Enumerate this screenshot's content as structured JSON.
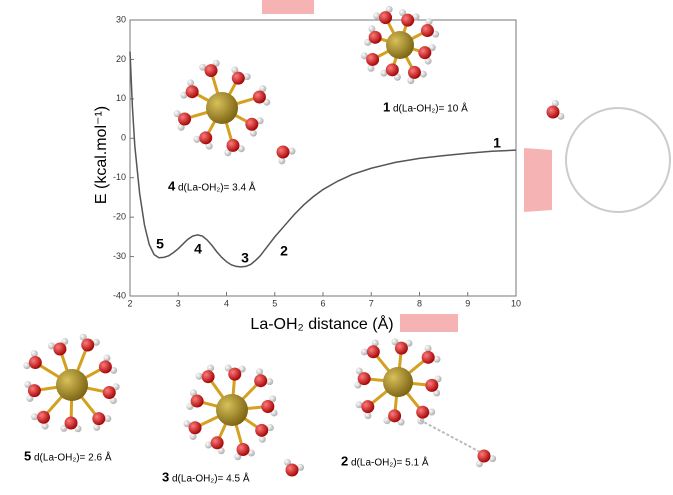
{
  "chart_data": {
    "type": "line",
    "y_label": "E (kcal.mol⁻¹)",
    "x_label": "La-OH₂ distance (Å)",
    "x": [
      2,
      2.05,
      2.1,
      2.2,
      2.3,
      2.4,
      2.5,
      2.6,
      2.7,
      2.8,
      2.9,
      3.0,
      3.1,
      3.2,
      3.3,
      3.4,
      3.5,
      3.6,
      3.7,
      3.8,
      3.9,
      4.0,
      4.1,
      4.2,
      4.3,
      4.4,
      4.5,
      4.6,
      4.7,
      4.8,
      4.9,
      5.0,
      5.2,
      5.4,
      5.6,
      5.8,
      6.0,
      6.3,
      6.6,
      7.0,
      7.5,
      8.0,
      8.5,
      9.0,
      9.5,
      10
    ],
    "values": [
      22,
      8,
      -2,
      -14,
      -22,
      -27,
      -29.5,
      -30.3,
      -30.2,
      -29.8,
      -29,
      -28,
      -26.8,
      -25.6,
      -24.8,
      -24.5,
      -24.8,
      -25.8,
      -27.2,
      -28.8,
      -30.2,
      -31.3,
      -32.1,
      -32.5,
      -32.6,
      -32.5,
      -32,
      -31,
      -29.8,
      -28.2,
      -26.6,
      -25,
      -22.2,
      -19.4,
      -16.9,
      -14.8,
      -13,
      -10.9,
      -9.2,
      -7.6,
      -6.1,
      -5.1,
      -4.4,
      -3.8,
      -3.3,
      -3
    ],
    "color": "#555555",
    "xlim": [
      2,
      10
    ],
    "xticks": [
      2,
      3,
      4,
      5,
      6,
      7,
      8,
      9,
      10
    ],
    "ylim": [
      -40,
      30
    ],
    "yticks": [
      30,
      20,
      10,
      0,
      -10,
      -20,
      -30,
      -40
    ],
    "grid": false,
    "annotations": [
      {
        "label": "1",
        "caption": "d(La-OH₂)= 10 Å"
      },
      {
        "label": "2",
        "caption": "d(La-OH₂)= 5.1 Å"
      },
      {
        "label": "3",
        "caption": "d(La-OH₂)= 4.5 Å"
      },
      {
        "label": "4",
        "caption": "d(La-OH₂)= 3.4 Å"
      },
      {
        "label": "5",
        "caption": "d(La-OH₂)= 2.6 Å"
      }
    ]
  }
}
